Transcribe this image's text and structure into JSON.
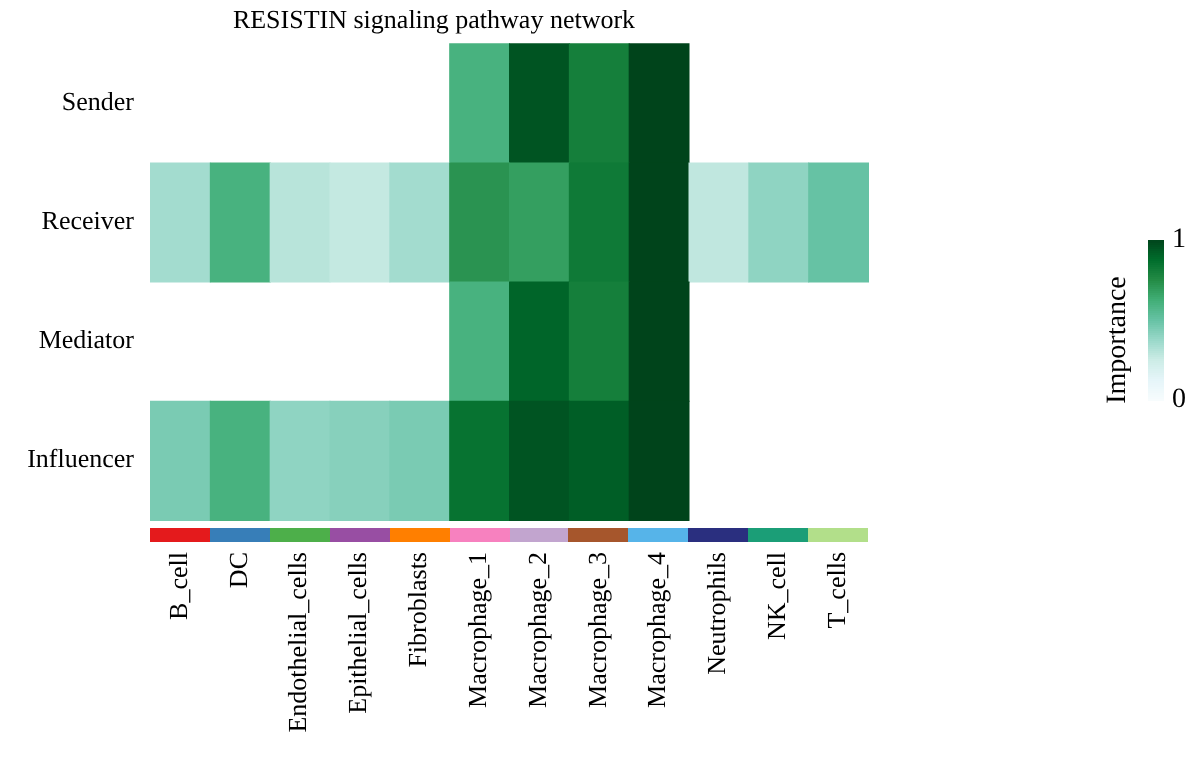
{
  "chart_data": {
    "type": "heatmap",
    "title": "RESISTIN signaling pathway network",
    "categories": [
      "B_cell",
      "DC",
      "Endothelial_cells",
      "Epithelial_cells",
      "Fibroblasts",
      "Macrophage_1",
      "Macrophage_2",
      "Macrophage_3",
      "Macrophage_4",
      "Neutrophils",
      "NK_cell",
      "T_cells"
    ],
    "y_categories": [
      "Sender",
      "Receiver",
      "Mediator",
      "Influencer"
    ],
    "cells": [
      [
        null,
        null,
        null,
        null,
        null,
        0.6,
        0.95,
        0.8,
        1,
        null,
        null,
        null
      ],
      [
        0.35,
        0.6,
        0.3,
        0.27,
        0.35,
        0.72,
        0.68,
        0.82,
        1,
        0.28,
        0.4,
        0.5
      ],
      [
        null,
        null,
        null,
        null,
        null,
        0.6,
        0.9,
        0.8,
        1,
        null,
        null,
        null
      ],
      [
        0.45,
        0.6,
        0.4,
        0.42,
        0.45,
        0.85,
        0.95,
        0.92,
        1,
        null,
        null,
        null
      ]
    ],
    "clim": [
      0,
      1
    ],
    "cticks": [
      0,
      1
    ],
    "clabel": "Importance",
    "grid": false,
    "legend": false
  }
}
